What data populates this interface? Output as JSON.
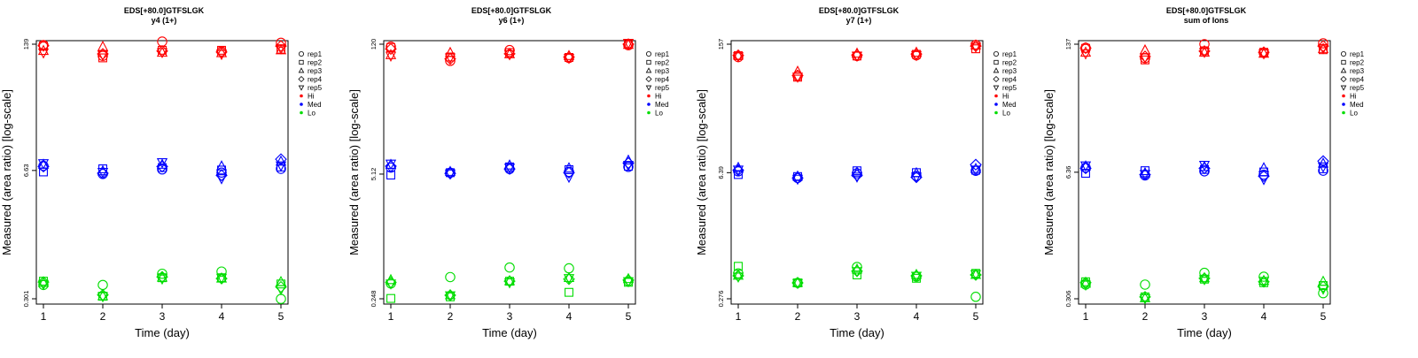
{
  "x_ticks": [
    "1",
    "2",
    "3",
    "4",
    "5"
  ],
  "legend": {
    "replicates": [
      {
        "label": "rep1",
        "shape": "circle"
      },
      {
        "label": "rep2",
        "shape": "square"
      },
      {
        "label": "rep3",
        "shape": "triangle"
      },
      {
        "label": "rep4",
        "shape": "diamond"
      },
      {
        "label": "rep5",
        "shape": "triangle-down"
      }
    ],
    "levels": [
      {
        "label": "Hi",
        "color": "#ff0000"
      },
      {
        "label": "Med",
        "color": "#0000ff"
      },
      {
        "label": "Lo",
        "color": "#00dd00"
      }
    ]
  },
  "chart_data": [
    {
      "type": "scatter",
      "title": "EDS[+80.0]GTFSLGK",
      "subtitle": "y4 (1+)",
      "xlabel": "Time (day)",
      "ylabel": "Measured (area ratio) [log-scale]",
      "yscale": "log",
      "ylim": [
        0.301,
        139
      ],
      "yticks": [
        "0.301",
        "6.63",
        "139"
      ],
      "x": [
        1,
        2,
        3,
        4,
        5
      ],
      "series": [
        {
          "name": "rep1",
          "level": "Hi",
          "values": [
            136,
            105,
            148,
            117,
            144
          ]
        },
        {
          "name": "rep2",
          "level": "Hi",
          "values": [
            133,
            100,
            120,
            120,
            123
          ]
        },
        {
          "name": "rep3",
          "level": "Hi",
          "values": [
            118,
            130,
            113,
            112,
            120
          ]
        },
        {
          "name": "rep4",
          "level": "Hi",
          "values": [
            134,
            110,
            118,
            115,
            133
          ]
        },
        {
          "name": "rep5",
          "level": "Hi",
          "values": [
            114,
            108,
            115,
            110,
            126
          ]
        },
        {
          "name": "rep1",
          "level": "Med",
          "values": [
            7.4,
            6.1,
            6.8,
            6.3,
            6.9
          ]
        },
        {
          "name": "rep2",
          "level": "Med",
          "values": [
            6.4,
            6.9,
            7.1,
            6.7,
            7.2
          ]
        },
        {
          "name": "rep3",
          "level": "Med",
          "values": [
            7.6,
            6.5,
            7.6,
            7.3,
            8.2
          ]
        },
        {
          "name": "rep4",
          "level": "Med",
          "values": [
            7.3,
            6.2,
            7.3,
            5.9,
            8.7
          ]
        },
        {
          "name": "rep5",
          "level": "Med",
          "values": [
            7.9,
            6.4,
            8.1,
            5.5,
            7.5
          ]
        },
        {
          "name": "rep1",
          "level": "Lo",
          "values": [
            0.42,
            0.42,
            0.55,
            0.58,
            0.3
          ]
        },
        {
          "name": "rep2",
          "level": "Lo",
          "values": [
            0.46,
            0.32,
            0.5,
            0.5,
            0.43
          ]
        },
        {
          "name": "rep3",
          "level": "Lo",
          "values": [
            0.44,
            0.32,
            0.5,
            0.49,
            0.45
          ]
        },
        {
          "name": "rep4",
          "level": "Lo",
          "values": [
            0.45,
            0.33,
            0.51,
            0.49,
            0.4
          ]
        },
        {
          "name": "rep5",
          "level": "Lo",
          "values": [
            0.43,
            0.32,
            0.49,
            0.5,
            0.38
          ]
        }
      ]
    },
    {
      "type": "scatter",
      "title": "EDS[+80.0]GTFSLGK",
      "subtitle": "y6 (1+)",
      "xlabel": "Time (day)",
      "ylabel": "Measured (area ratio) [log-scale]",
      "yscale": "log",
      "ylim": [
        0.248,
        120
      ],
      "yticks": [
        "0.248",
        "5.12",
        "120"
      ],
      "x": [
        1,
        2,
        3,
        4,
        5
      ],
      "series": [
        {
          "name": "rep1",
          "level": "Hi",
          "values": [
            113,
            80,
            104,
            86,
            117
          ]
        },
        {
          "name": "rep2",
          "level": "Hi",
          "values": [
            111,
            88,
            98,
            87,
            121
          ]
        },
        {
          "name": "rep3",
          "level": "Hi",
          "values": [
            92,
            97,
            94,
            90,
            118
          ]
        },
        {
          "name": "rep4",
          "level": "Hi",
          "values": [
            107,
            84,
            95,
            88,
            120
          ]
        },
        {
          "name": "rep5",
          "level": "Hi",
          "values": [
            91,
            87,
            94,
            86,
            124
          ]
        },
        {
          "name": "rep1",
          "level": "Med",
          "values": [
            6.0,
            5.3,
            5.8,
            5.4,
            6.1
          ]
        },
        {
          "name": "rep2",
          "level": "Med",
          "values": [
            5.0,
            5.3,
            6.1,
            5.7,
            6.2
          ]
        },
        {
          "name": "rep3",
          "level": "Med",
          "values": [
            6.4,
            5.4,
            6.3,
            5.9,
            7.1
          ]
        },
        {
          "name": "rep4",
          "level": "Med",
          "values": [
            6.2,
            5.2,
            5.8,
            5.3,
            6.7
          ]
        },
        {
          "name": "rep5",
          "level": "Med",
          "values": [
            6.6,
            5.2,
            6.0,
            4.8,
            6.4
          ]
        },
        {
          "name": "rep1",
          "level": "Lo",
          "values": [
            0.36,
            0.42,
            0.53,
            0.52,
            0.38
          ]
        },
        {
          "name": "rep2",
          "level": "Lo",
          "values": [
            0.25,
            0.26,
            0.38,
            0.29,
            0.37
          ]
        },
        {
          "name": "rep3",
          "level": "Lo",
          "values": [
            0.39,
            0.27,
            0.38,
            0.41,
            0.4
          ]
        },
        {
          "name": "rep4",
          "level": "Lo",
          "values": [
            0.37,
            0.27,
            0.38,
            0.4,
            0.39
          ]
        },
        {
          "name": "rep5",
          "level": "Lo",
          "values": [
            0.36,
            0.27,
            0.37,
            0.41,
            0.38
          ]
        }
      ]
    },
    {
      "type": "scatter",
      "title": "EDS[+80.0]GTFSLGK",
      "subtitle": "y7 (1+)",
      "xlabel": "Time (day)",
      "ylabel": "Measured (area ratio) [log-scale]",
      "yscale": "log",
      "ylim": [
        0.276,
        157
      ],
      "yticks": [
        "0.276",
        "6.39",
        "157"
      ],
      "x": [
        1,
        2,
        3,
        4,
        5
      ],
      "series": [
        {
          "name": "rep1",
          "level": "Hi",
          "values": [
            114,
            71,
            117,
            119,
            154
          ]
        },
        {
          "name": "rep2",
          "level": "Hi",
          "values": [
            118,
            69,
            117,
            122,
            140
          ]
        },
        {
          "name": "rep3",
          "level": "Hi",
          "values": [
            118,
            79,
            124,
            127,
            152
          ]
        },
        {
          "name": "rep4",
          "level": "Hi",
          "values": [
            119,
            72,
            120,
            123,
            150
          ]
        },
        {
          "name": "rep5",
          "level": "Hi",
          "values": [
            116,
            70,
            118,
            120,
            148
          ]
        },
        {
          "name": "rep1",
          "level": "Med",
          "values": [
            6.6,
            5.6,
            6.3,
            5.9,
            6.7
          ]
        },
        {
          "name": "rep2",
          "level": "Med",
          "values": [
            6.1,
            5.8,
            6.7,
            6.4,
            6.8
          ]
        },
        {
          "name": "rep3",
          "level": "Med",
          "values": [
            7.2,
            5.8,
            6.4,
            6.3,
            7.0
          ]
        },
        {
          "name": "rep4",
          "level": "Med",
          "values": [
            6.8,
            5.6,
            6.0,
            5.7,
            7.8
          ]
        },
        {
          "name": "rep5",
          "level": "Med",
          "values": [
            6.9,
            5.5,
            5.8,
            5.8,
            6.9
          ]
        },
        {
          "name": "rep1",
          "level": "Lo",
          "values": [
            0.52,
            0.41,
            0.61,
            0.48,
            0.29
          ]
        },
        {
          "name": "rep2",
          "level": "Lo",
          "values": [
            0.62,
            0.41,
            0.5,
            0.46,
            0.52
          ]
        },
        {
          "name": "rep3",
          "level": "Lo",
          "values": [
            0.49,
            0.41,
            0.57,
            0.5,
            0.5
          ]
        },
        {
          "name": "rep4",
          "level": "Lo",
          "values": [
            0.49,
            0.41,
            0.55,
            0.49,
            0.5
          ]
        },
        {
          "name": "rep5",
          "level": "Lo",
          "values": [
            0.48,
            0.41,
            0.55,
            0.49,
            0.51
          ]
        }
      ]
    },
    {
      "type": "scatter",
      "title": "EDS[+80.0]GTFSLGK",
      "subtitle": "sum of Ions",
      "xlabel": "Time (day)",
      "ylabel": "Measured (area ratio) [log-scale]",
      "yscale": "log",
      "ylim": [
        0.306,
        137
      ],
      "yticks": [
        "0.306",
        "6.36",
        "137"
      ],
      "x": [
        1,
        2,
        3,
        4,
        5
      ],
      "series": [
        {
          "name": "rep1",
          "level": "Hi",
          "values": [
            126,
            98,
            137,
            111,
            140
          ]
        },
        {
          "name": "rep2",
          "level": "Hi",
          "values": [
            124,
            94,
            117,
            113,
            120
          ]
        },
        {
          "name": "rep3",
          "level": "Hi",
          "values": [
            112,
            118,
            112,
            109,
            122
          ]
        },
        {
          "name": "rep4",
          "level": "Hi",
          "values": [
            125,
            102,
            116,
            113,
            131
          ]
        },
        {
          "name": "rep5",
          "level": "Hi",
          "values": [
            110,
            100,
            114,
            110,
            125
          ]
        },
        {
          "name": "rep1",
          "level": "Med",
          "values": [
            7.1,
            5.9,
            6.5,
            6.0,
            6.6
          ]
        },
        {
          "name": "rep2",
          "level": "Med",
          "values": [
            6.2,
            6.6,
            6.8,
            6.4,
            6.9
          ]
        },
        {
          "name": "rep3",
          "level": "Med",
          "values": [
            7.3,
            6.2,
            7.2,
            7.0,
            7.8
          ]
        },
        {
          "name": "rep4",
          "level": "Med",
          "values": [
            7.0,
            6.0,
            7.0,
            5.8,
            8.3
          ]
        },
        {
          "name": "rep5",
          "level": "Med",
          "values": [
            7.5,
            6.1,
            7.6,
            5.4,
            7.3
          ]
        },
        {
          "name": "rep1",
          "level": "Lo",
          "values": [
            0.43,
            0.43,
            0.57,
            0.52,
            0.35
          ]
        },
        {
          "name": "rep2",
          "level": "Lo",
          "values": [
            0.46,
            0.32,
            0.49,
            0.45,
            0.42
          ]
        },
        {
          "name": "rep3",
          "level": "Lo",
          "values": [
            0.44,
            0.31,
            0.5,
            0.47,
            0.46
          ]
        },
        {
          "name": "rep4",
          "level": "Lo",
          "values": [
            0.45,
            0.32,
            0.5,
            0.46,
            0.41
          ]
        },
        {
          "name": "rep5",
          "level": "Lo",
          "values": [
            0.43,
            0.31,
            0.49,
            0.47,
            0.39
          ]
        }
      ]
    }
  ]
}
